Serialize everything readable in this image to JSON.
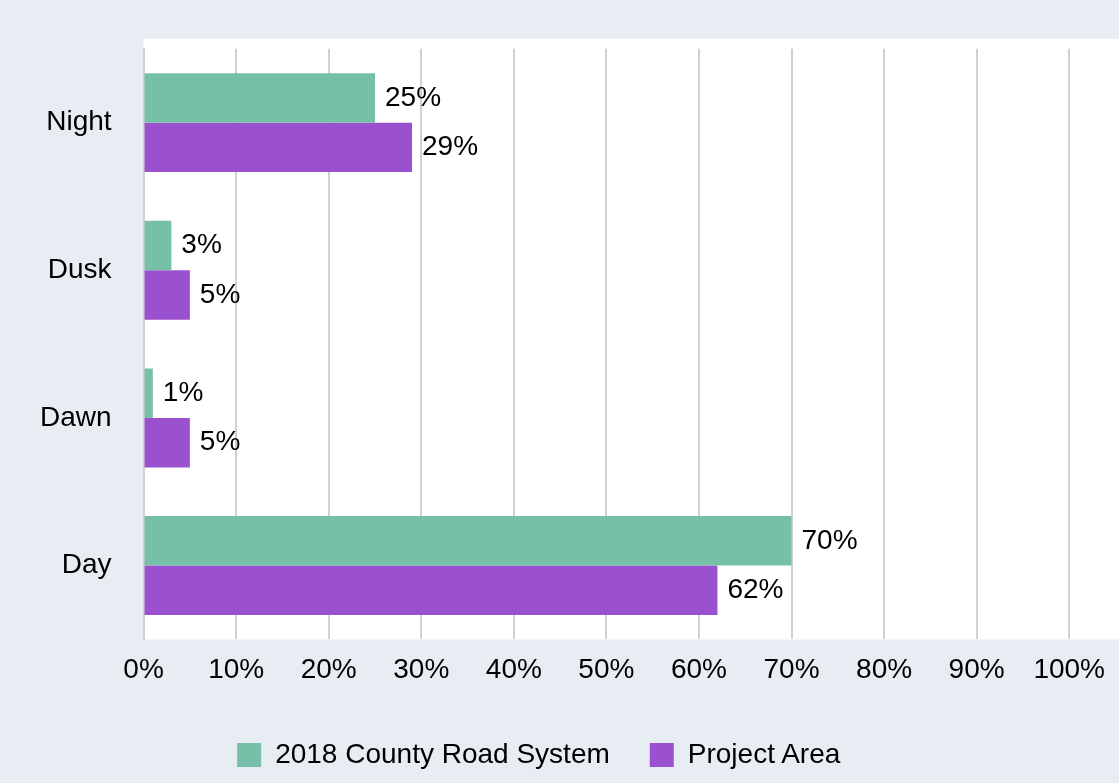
{
  "chart_data": {
    "type": "bar",
    "orientation": "horizontal",
    "categories": [
      "Night",
      "Dusk",
      "Dawn",
      "Day"
    ],
    "series": [
      {
        "name": "2018 County Road System",
        "color": "#76bfa8",
        "values": [
          25,
          3,
          1,
          70
        ],
        "value_labels": [
          "25%",
          "3%",
          "1%",
          "70%"
        ]
      },
      {
        "name": "Project Area",
        "color": "#9b51cf",
        "values": [
          29,
          5,
          5,
          62
        ],
        "value_labels": [
          "29%",
          "5%",
          "5%",
          "62%"
        ]
      }
    ],
    "xlim": [
      0,
      100
    ],
    "xticks": [
      {
        "value": 0,
        "label": "0%"
      },
      {
        "value": 10,
        "label": "10%"
      },
      {
        "value": 20,
        "label": "20%"
      },
      {
        "value": 30,
        "label": "30%"
      },
      {
        "value": 40,
        "label": "40%"
      },
      {
        "value": 50,
        "label": "50%"
      },
      {
        "value": 60,
        "label": "60%"
      },
      {
        "value": 70,
        "label": "70%"
      },
      {
        "value": 80,
        "label": "80%"
      },
      {
        "value": 90,
        "label": "90%"
      },
      {
        "value": 100,
        "label": "100%"
      }
    ],
    "grid": "x",
    "legend": "bottom"
  }
}
